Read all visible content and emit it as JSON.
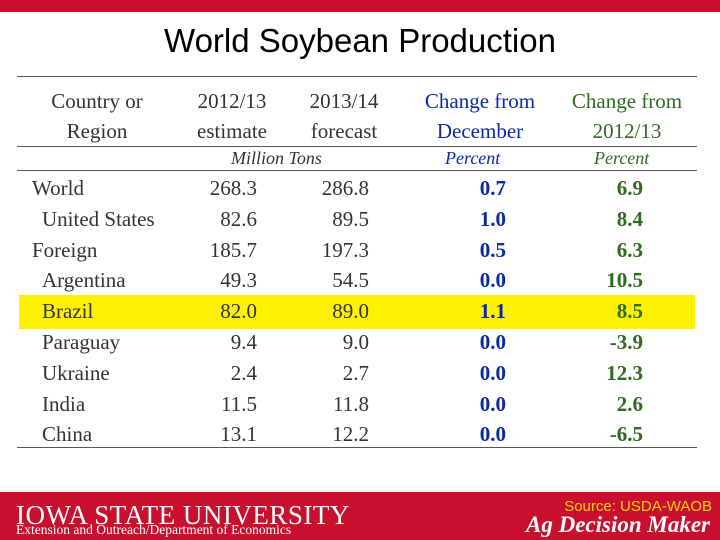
{
  "title": "World Soybean Production",
  "headers": {
    "country": [
      "Country or",
      "Region"
    ],
    "est": [
      "2012/13",
      "estimate"
    ],
    "fcst": [
      "2013/14",
      "forecast"
    ],
    "chg_dec": [
      "Change from",
      "December"
    ],
    "chg_prev": [
      "Change from",
      "2012/13"
    ]
  },
  "units": {
    "tons": "Million Tons",
    "pct1": "Percent",
    "pct2": "Percent"
  },
  "rows": [
    {
      "name": "World",
      "est": "268.3",
      "fcst": "286.8",
      "chg_dec": "0.7",
      "chg_prev": "6.9"
    },
    {
      "name": "United States",
      "est": "82.6",
      "fcst": "89.5",
      "chg_dec": "1.0",
      "chg_prev": "8.4"
    },
    {
      "name": "Foreign",
      "est": "185.7",
      "fcst": "197.3",
      "chg_dec": "0.5",
      "chg_prev": "6.3"
    },
    {
      "name": "Argentina",
      "est": "49.3",
      "fcst": "54.5",
      "chg_dec": "0.0",
      "chg_prev": "10.5"
    },
    {
      "name": "Brazil",
      "est": "82.0",
      "fcst": "89.0",
      "chg_dec": "1.1",
      "chg_prev": "8.5"
    },
    {
      "name": "Paraguay",
      "est": "9.4",
      "fcst": "9.0",
      "chg_dec": "0.0",
      "chg_prev": "-3.9"
    },
    {
      "name": "Ukraine",
      "est": "2.4",
      "fcst": "2.7",
      "chg_dec": "0.0",
      "chg_prev": "12.3"
    },
    {
      "name": "India",
      "est": "11.5",
      "fcst": "11.8",
      "chg_dec": "0.0",
      "chg_prev": "2.6"
    },
    {
      "name": "China",
      "est": "13.1",
      "fcst": "12.2",
      "chg_dec": "0.0",
      "chg_prev": "-6.5"
    }
  ],
  "footer": {
    "university": "IOWA STATE UNIVERSITY",
    "department": "Extension and Outreach/Department of Economics",
    "source": "Source: USDA-WAOB",
    "brand": "Ag Decision Maker"
  },
  "colors": {
    "brand_red": "#c8102e",
    "highlight": "#fff200",
    "blue": "#0b2aa8",
    "green": "#2e6b1e"
  }
}
